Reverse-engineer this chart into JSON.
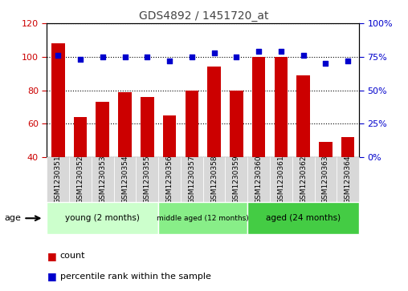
{
  "title": "GDS4892 / 1451720_at",
  "samples": [
    "GSM1230351",
    "GSM1230352",
    "GSM1230353",
    "GSM1230354",
    "GSM1230355",
    "GSM1230356",
    "GSM1230357",
    "GSM1230358",
    "GSM1230359",
    "GSM1230360",
    "GSM1230361",
    "GSM1230362",
    "GSM1230363",
    "GSM1230364"
  ],
  "counts": [
    108,
    64,
    73,
    79,
    76,
    65,
    80,
    94,
    80,
    100,
    100,
    89,
    49,
    52
  ],
  "percentiles": [
    76,
    73,
    75,
    75,
    75,
    72,
    75,
    78,
    75,
    79,
    79,
    76,
    70,
    72
  ],
  "ylim_left": [
    40,
    120
  ],
  "ylim_right": [
    0,
    100
  ],
  "yticks_left": [
    40,
    60,
    80,
    100,
    120
  ],
  "yticks_right": [
    0,
    25,
    50,
    75,
    100
  ],
  "bar_color": "#cc0000",
  "dot_color": "#0000cc",
  "groups": [
    {
      "label": "young (2 months)",
      "start": 0,
      "end": 5,
      "color": "#ccffcc"
    },
    {
      "label": "middle aged (12 months)",
      "start": 5,
      "end": 9,
      "color": "#88ee88"
    },
    {
      "label": "aged (24 months)",
      "start": 9,
      "end": 14,
      "color": "#44cc44"
    }
  ],
  "age_label": "age",
  "legend_count": "count",
  "legend_percentile": "percentile rank within the sample",
  "left_axis_color": "#cc0000",
  "right_axis_color": "#0000cc",
  "title_color": "#444444",
  "xtick_bg": "#d8d8d8"
}
